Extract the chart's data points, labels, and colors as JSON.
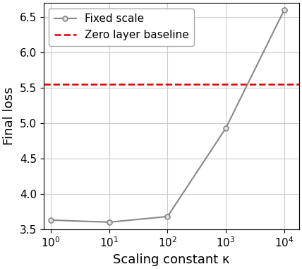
{
  "x": [
    1,
    10,
    100,
    1000,
    10000
  ],
  "y_fixed_scale": [
    3.63,
    3.6,
    3.68,
    4.93,
    6.6
  ],
  "zero_layer_baseline": 5.55,
  "line_color": "#888888",
  "baseline_color": "#dd0000",
  "marker": "o",
  "marker_size": 5,
  "title": "",
  "xlabel": "Scaling constant κ",
  "ylabel": "Final loss",
  "ylim": [
    3.5,
    6.7
  ],
  "xlim_log": [
    0.75,
    18000
  ],
  "legend_fixed_scale": "Fixed scale",
  "legend_baseline": "Zero layer baseline",
  "grid": true,
  "background_color": "#ffffff",
  "xlabel_fontsize": 13,
  "ylabel_fontsize": 13,
  "legend_fontsize": 11,
  "tick_fontsize": 11
}
